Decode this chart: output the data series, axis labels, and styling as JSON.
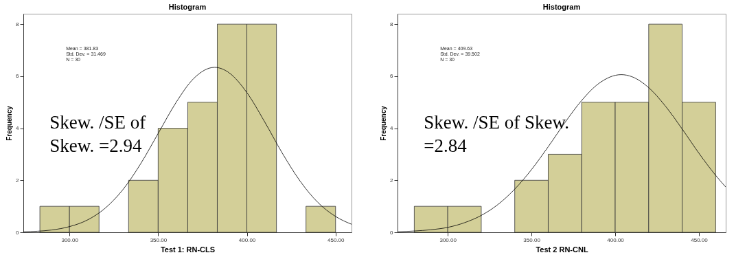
{
  "chart_data": [
    {
      "type": "histogram",
      "title": "Histogram",
      "xlabel": "Test 1: RN-CLS",
      "ylabel": "Frequency",
      "color": "#d3cf98",
      "bins": [
        283.33,
        300,
        316.67,
        333.33,
        350,
        366.67,
        383.33,
        400,
        416.67,
        433.33,
        450
      ],
      "values": [
        1,
        1,
        0,
        2,
        4,
        5,
        8,
        8,
        0,
        1
      ],
      "xlim": [
        274,
        459
      ],
      "xticks": [
        {
          "value": 300,
          "label": "300.00"
        },
        {
          "value": 350,
          "label": "350.00"
        },
        {
          "value": 400,
          "label": "400.00"
        },
        {
          "value": 450,
          "label": "450.00"
        }
      ],
      "ylim": [
        0,
        8.4
      ],
      "yticks": [
        0,
        2,
        4,
        6,
        8
      ],
      "series": [
        {
          "type": "line",
          "color": "#000000",
          "x": [
            274,
            290,
            300,
            310,
            320,
            330,
            340,
            350,
            360,
            370,
            381.83,
            390,
            400,
            410,
            420,
            430,
            440,
            450,
            459
          ],
          "values": [
            0.02,
            0.09,
            0.22,
            0.47,
            0.92,
            1.63,
            2.62,
            3.8,
            4.98,
            5.91,
            6.34,
            6.13,
            5.37,
            4.25,
            3.04,
            1.97,
            1.15,
            0.61,
            0.31
          ]
        }
      ],
      "annotations": [
        "Mean = 381.83",
        "Std. Dev. = 31.469",
        "N = 30",
        "Skew. /SE of Skew. =2.94"
      ]
    },
    {
      "type": "histogram",
      "title": "Histogram",
      "xlabel": "Test 2 RN-CNL",
      "ylabel": "Frequency",
      "color": "#d3cf98",
      "bins": [
        280,
        300,
        320,
        340,
        360,
        380,
        400,
        420,
        440,
        460
      ],
      "values": [
        1,
        1,
        0,
        2,
        3,
        5,
        5,
        8,
        5
      ],
      "xlim": [
        270,
        466
      ],
      "xticks": [
        {
          "value": 300,
          "label": "300.00"
        },
        {
          "value": 350,
          "label": "350.00"
        },
        {
          "value": 400,
          "label": "400.00"
        },
        {
          "value": 450,
          "label": "450.00"
        }
      ],
      "ylim": [
        0,
        8.4
      ],
      "yticks": [
        0,
        2,
        4,
        6,
        8
      ],
      "series": [
        {
          "type": "line",
          "color": "#000000",
          "x": [
            270,
            280,
            290,
            300,
            310,
            320,
            330,
            340,
            350,
            360,
            370,
            380,
            390,
            403.63,
            410,
            420,
            430,
            440,
            450,
            460,
            466
          ],
          "values": [
            0.02,
            0.05,
            0.1,
            0.19,
            0.37,
            0.65,
            1.07,
            1.66,
            2.41,
            3.29,
            4.22,
            5.07,
            5.71,
            6.06,
            5.98,
            5.56,
            4.85,
            3.97,
            3.04,
            2.19,
            1.74
          ]
        }
      ],
      "annotations": [
        "Mean = 409.63",
        "Std. Dev. = 39.502",
        "N = 30",
        "Skew. /SE of Skew. =2.84"
      ]
    }
  ]
}
